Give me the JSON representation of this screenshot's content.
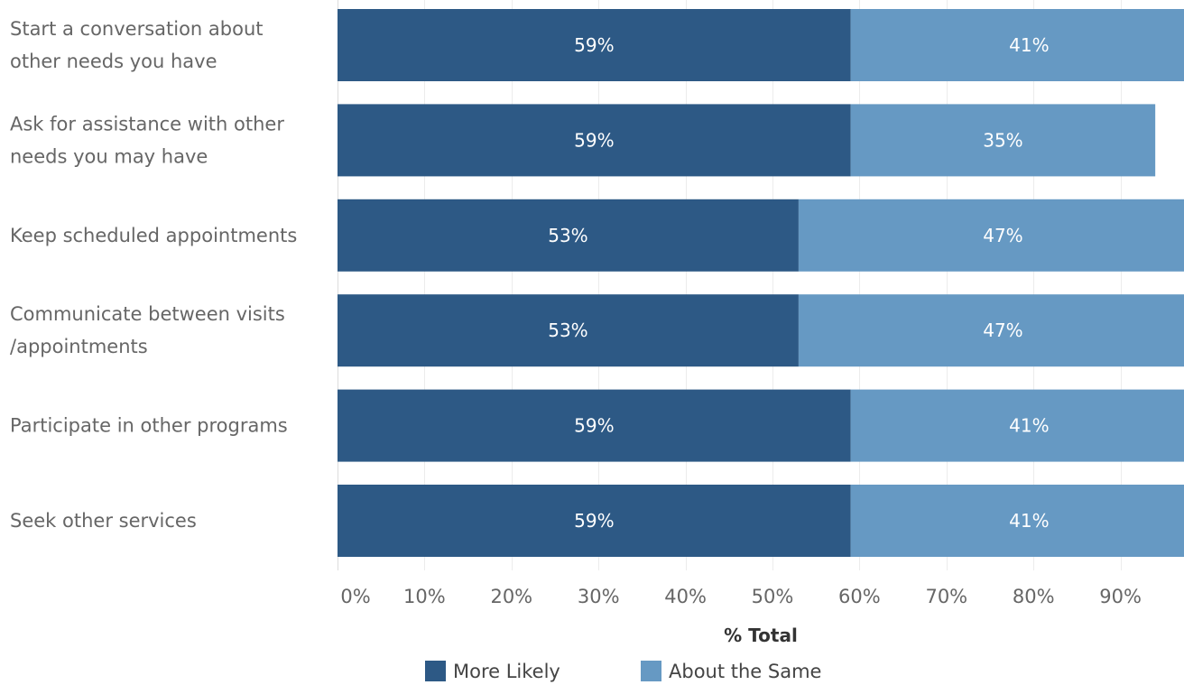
{
  "chart_data": {
    "type": "bar",
    "orientation": "horizontal",
    "stacked": true,
    "categories": [
      [
        "Start a conversation about",
        "other needs you have"
      ],
      [
        "Ask for assistance with other",
        "needs you may have"
      ],
      [
        "Keep scheduled appointments"
      ],
      [
        "Communicate between visits",
        "/appointments"
      ],
      [
        "Participate in other programs"
      ],
      [
        "Seek other services"
      ]
    ],
    "series": [
      {
        "name": "More Likely",
        "color": "#2d5985",
        "values": [
          59,
          59,
          53,
          53,
          59,
          59
        ],
        "labels": [
          "59%",
          "59%",
          "53%",
          "53%",
          "59%",
          "59%"
        ]
      },
      {
        "name": "About the Same",
        "color": "#6699c3",
        "values": [
          41,
          35,
          47,
          47,
          41,
          41
        ],
        "labels": [
          "41%",
          "35%",
          "47%",
          "47%",
          "41%",
          "41%"
        ]
      }
    ],
    "xlabel": "% Total",
    "xlim": [
      0,
      100
    ],
    "xticks": [
      "0%",
      "10%",
      "20%",
      "30%",
      "40%",
      "50%",
      "60%",
      "70%",
      "80%",
      "90%"
    ],
    "grid": true,
    "legend_position": "bottom"
  }
}
